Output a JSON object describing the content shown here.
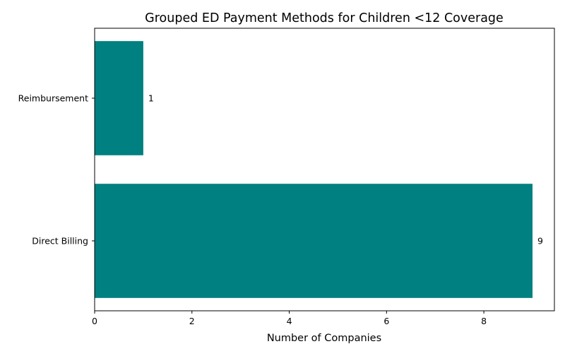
{
  "chart_data": {
    "type": "bar",
    "orientation": "horizontal",
    "title": "Grouped ED Payment Methods for Children <12 Coverage",
    "xlabel": "Number of Companies",
    "ylabel": "",
    "categories": [
      "Reimbursement",
      "Direct Billing"
    ],
    "values": [
      1,
      9
    ],
    "data_labels": [
      "1",
      "9"
    ],
    "xlim": [
      0,
      9.45
    ],
    "xticks": [
      0,
      2,
      4,
      6,
      8
    ],
    "xtick_labels": [
      "0",
      "2",
      "4",
      "6",
      "8"
    ],
    "grid": false,
    "legend": "none",
    "bar_color": "#008080"
  }
}
